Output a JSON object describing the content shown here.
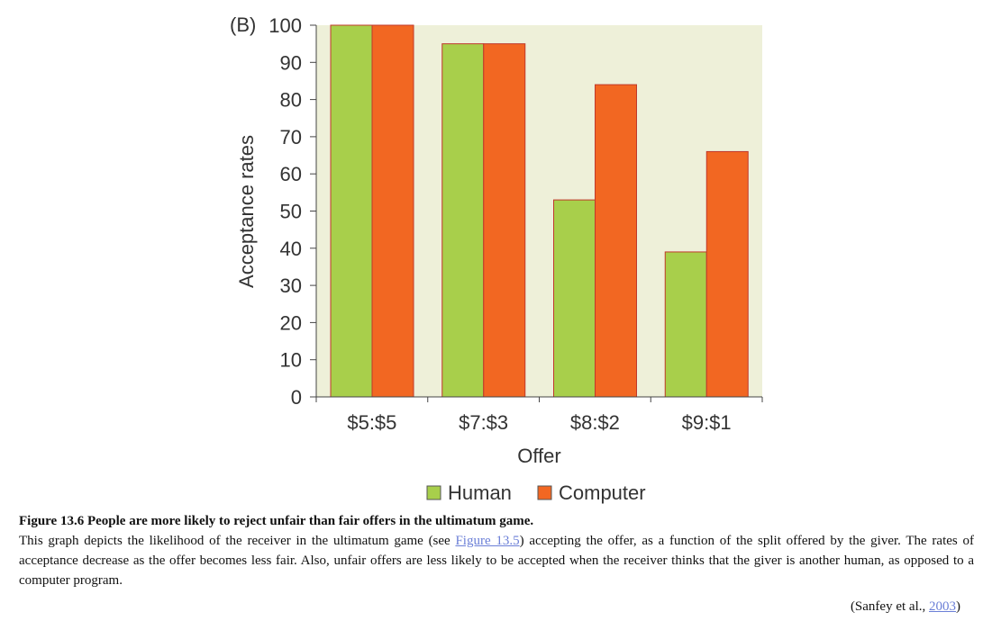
{
  "chart_data": {
    "type": "bar",
    "panel_label": "(B)",
    "categories": [
      "$5:$5",
      "$7:$3",
      "$8:$2",
      "$9:$1"
    ],
    "series": [
      {
        "name": "Human",
        "values": [
          100,
          95,
          53,
          39
        ],
        "color": "#a8cf4b"
      },
      {
        "name": "Computer",
        "values": [
          100,
          95,
          84,
          66
        ],
        "color": "#f26722"
      }
    ],
    "xlabel": "Offer",
    "ylabel": "Acceptance rates",
    "ylim": [
      0,
      100
    ],
    "yticks": [
      0,
      10,
      20,
      30,
      40,
      50,
      60,
      70,
      80,
      90,
      100
    ],
    "plot_background": "#eef0d9",
    "bar_edge_color": "#c0392b",
    "legend_position": "bottom-center"
  },
  "caption": {
    "title": "Figure 13.6 People are more likely to reject unfair than fair offers in the ultimatum game.",
    "body_before_link": "This graph depicts the likelihood of the receiver in the ultimatum game (see ",
    "link_text": "Figure 13.5",
    "body_after_link": ") accepting the offer, as a function of the split offered by the giver. The rates of acceptance decrease as the offer becomes less fair. Also, unfair offers are less likely to be accepted when the receiver thinks that the giver is another human, as opposed to a computer program.",
    "source_prefix": "(Sanfey et al., ",
    "source_year": "2003",
    "source_suffix": ")"
  }
}
